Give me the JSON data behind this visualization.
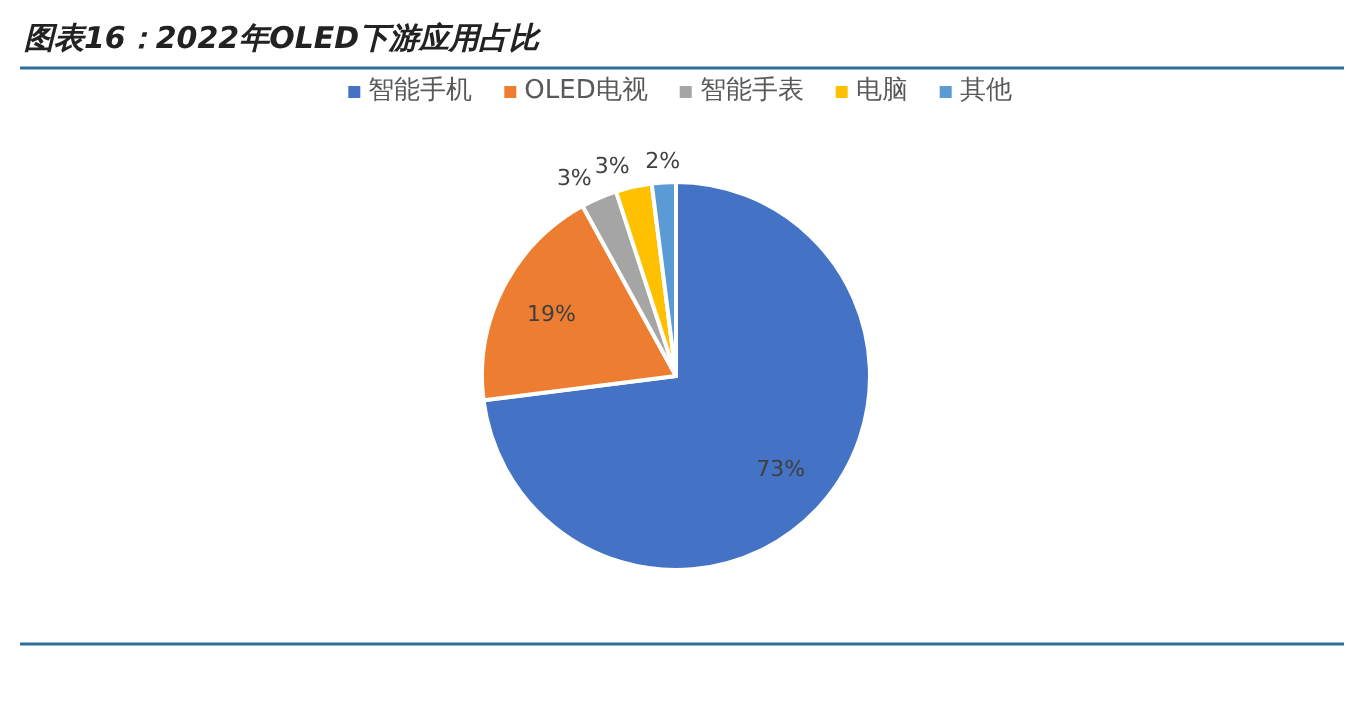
{
  "chart_data": {
    "type": "pie",
    "title": "图表16：2022年OLED下游应用占比",
    "categories": [
      "智能手机",
      "OLED电视",
      "智能手表",
      "电脑",
      "其他"
    ],
    "values": [
      73,
      19,
      3,
      3,
      2
    ],
    "colors": [
      "#4472c4",
      "#ed7d31",
      "#a5a5a5",
      "#ffc000",
      "#5b9bd5"
    ],
    "value_labels": [
      "73%",
      "19%",
      "3%",
      "3%",
      "2%"
    ],
    "legend": "top"
  }
}
